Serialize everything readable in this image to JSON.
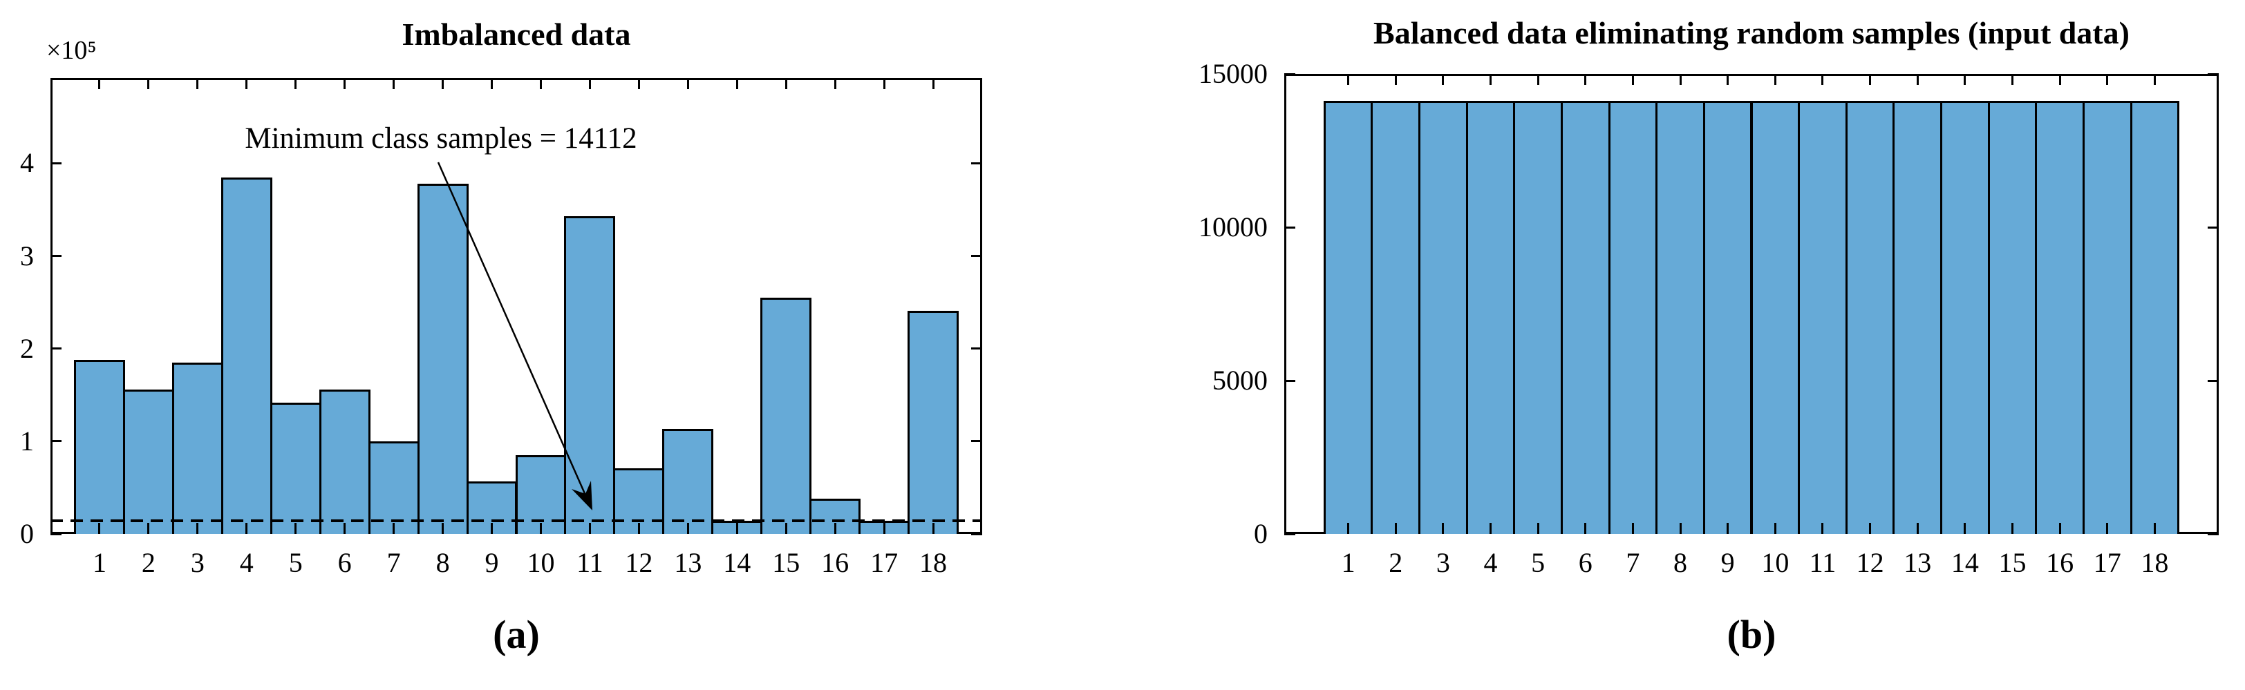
{
  "colors": {
    "bar_fill": "#66AAD7",
    "bar_edge": "#000000",
    "axis": "#000000",
    "background": "#FFFFFF"
  },
  "chart_data": [
    {
      "type": "bar",
      "title": "Imbalanced data",
      "caption": "(a)",
      "y_offset_label": "×10⁵",
      "categories": [
        "1",
        "2",
        "3",
        "4",
        "5",
        "6",
        "7",
        "8",
        "9",
        "10",
        "11",
        "12",
        "13",
        "14",
        "15",
        "16",
        "17",
        "18"
      ],
      "values": [
        188000,
        156000,
        185000,
        385000,
        142000,
        156000,
        100000,
        378000,
        57000,
        85000,
        343000,
        71000,
        113000,
        14112,
        255000,
        38000,
        14112,
        241000
      ],
      "xlabel": "",
      "ylabel": "",
      "ylim": [
        0,
        492000
      ],
      "yticks": {
        "values": [
          0,
          100000,
          200000,
          300000,
          400000
        ],
        "labels": [
          "0",
          "1",
          "2",
          "3",
          "4"
        ]
      },
      "grid": false,
      "legend": "none",
      "bar_gap": "none",
      "reference_line": {
        "value": 14112,
        "style": "dashed",
        "color": "#000000"
      },
      "annotation": {
        "text": "Minimum class samples = 14112",
        "arrow_points_to": "value 14112 at category 11"
      }
    },
    {
      "type": "bar",
      "title": "Balanced data eliminating random samples (input data)",
      "caption": "(b)",
      "categories": [
        "1",
        "2",
        "3",
        "4",
        "5",
        "6",
        "7",
        "8",
        "9",
        "10",
        "11",
        "12",
        "13",
        "14",
        "15",
        "16",
        "17",
        "18"
      ],
      "values": [
        14112,
        14112,
        14112,
        14112,
        14112,
        14112,
        14112,
        14112,
        14112,
        14112,
        14112,
        14112,
        14112,
        14112,
        14112,
        14112,
        14112,
        14112
      ],
      "xlabel": "",
      "ylabel": "",
      "ylim": [
        0,
        15000
      ],
      "yticks": {
        "values": [
          0,
          5000,
          10000,
          15000
        ],
        "labels": [
          "0",
          "5000",
          "10000",
          "15000"
        ]
      },
      "grid": false,
      "legend": "none",
      "bar_gap": "none"
    }
  ]
}
